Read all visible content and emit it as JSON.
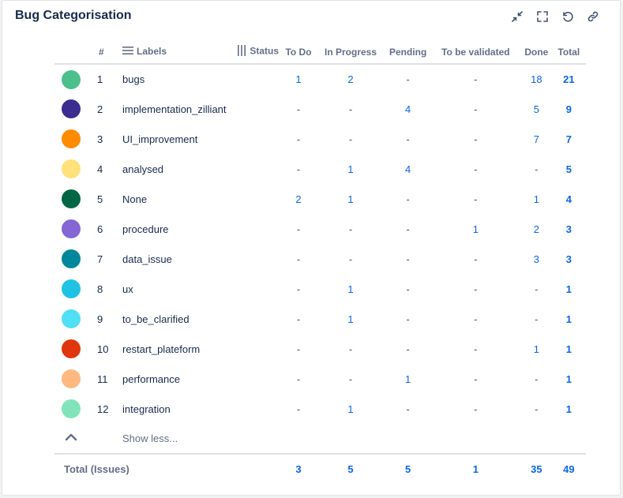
{
  "title": "Bug Categorisation",
  "toolbar": {
    "icons": [
      "minimize-icon",
      "fullscreen-icon",
      "refresh-icon",
      "link-icon"
    ]
  },
  "headers": {
    "num": "#",
    "labels": "Labels",
    "status": "Status",
    "todo": "To Do",
    "in_progress": "In Progress",
    "pending": "Pending",
    "to_be_validated": "To be validated",
    "done": "Done",
    "total": "Total"
  },
  "rows": [
    {
      "num": "1",
      "label": "bugs",
      "color": "#4bc08c",
      "todo": "1",
      "in_progress": "2",
      "pending": "-",
      "to_be_validated": "-",
      "done": "18",
      "total": "21"
    },
    {
      "num": "2",
      "label": "implementation_zilliant",
      "color": "#3b2d8f",
      "todo": "-",
      "in_progress": "-",
      "pending": "4",
      "to_be_validated": "-",
      "done": "5",
      "total": "9"
    },
    {
      "num": "3",
      "label": "UI_improvement",
      "color": "#ff8b00",
      "todo": "-",
      "in_progress": "-",
      "pending": "-",
      "to_be_validated": "-",
      "done": "7",
      "total": "7"
    },
    {
      "num": "4",
      "label": "analysed",
      "color": "#fee17a",
      "todo": "-",
      "in_progress": "1",
      "pending": "4",
      "to_be_validated": "-",
      "done": "-",
      "total": "5"
    },
    {
      "num": "5",
      "label": "None",
      "color": "#006644",
      "todo": "2",
      "in_progress": "1",
      "pending": "-",
      "to_be_validated": "-",
      "done": "1",
      "total": "4"
    },
    {
      "num": "6",
      "label": "procedure",
      "color": "#8466d4",
      "todo": "-",
      "in_progress": "-",
      "pending": "-",
      "to_be_validated": "1",
      "done": "2",
      "total": "3"
    },
    {
      "num": "7",
      "label": "data_issue",
      "color": "#00879c",
      "todo": "-",
      "in_progress": "-",
      "pending": "-",
      "to_be_validated": "-",
      "done": "3",
      "total": "3"
    },
    {
      "num": "8",
      "label": "ux",
      "color": "#1ec3e3",
      "todo": "-",
      "in_progress": "1",
      "pending": "-",
      "to_be_validated": "-",
      "done": "-",
      "total": "1"
    },
    {
      "num": "9",
      "label": "to_be_clarified",
      "color": "#4fe0f5",
      "todo": "-",
      "in_progress": "1",
      "pending": "-",
      "to_be_validated": "-",
      "done": "-",
      "total": "1"
    },
    {
      "num": "10",
      "label": "restart_plateform",
      "color": "#e0360d",
      "todo": "-",
      "in_progress": "-",
      "pending": "-",
      "to_be_validated": "-",
      "done": "1",
      "total": "1"
    },
    {
      "num": "11",
      "label": "performance",
      "color": "#ffb880",
      "todo": "-",
      "in_progress": "-",
      "pending": "1",
      "to_be_validated": "-",
      "done": "-",
      "total": "1"
    },
    {
      "num": "12",
      "label": "integration",
      "color": "#80e4b8",
      "todo": "-",
      "in_progress": "1",
      "pending": "-",
      "to_be_validated": "-",
      "done": "-",
      "total": "1"
    }
  ],
  "show_less": "Show less...",
  "totals": {
    "label": "Total (Issues)",
    "todo": "3",
    "in_progress": "5",
    "pending": "5",
    "to_be_validated": "1",
    "done": "35",
    "total": "49"
  }
}
